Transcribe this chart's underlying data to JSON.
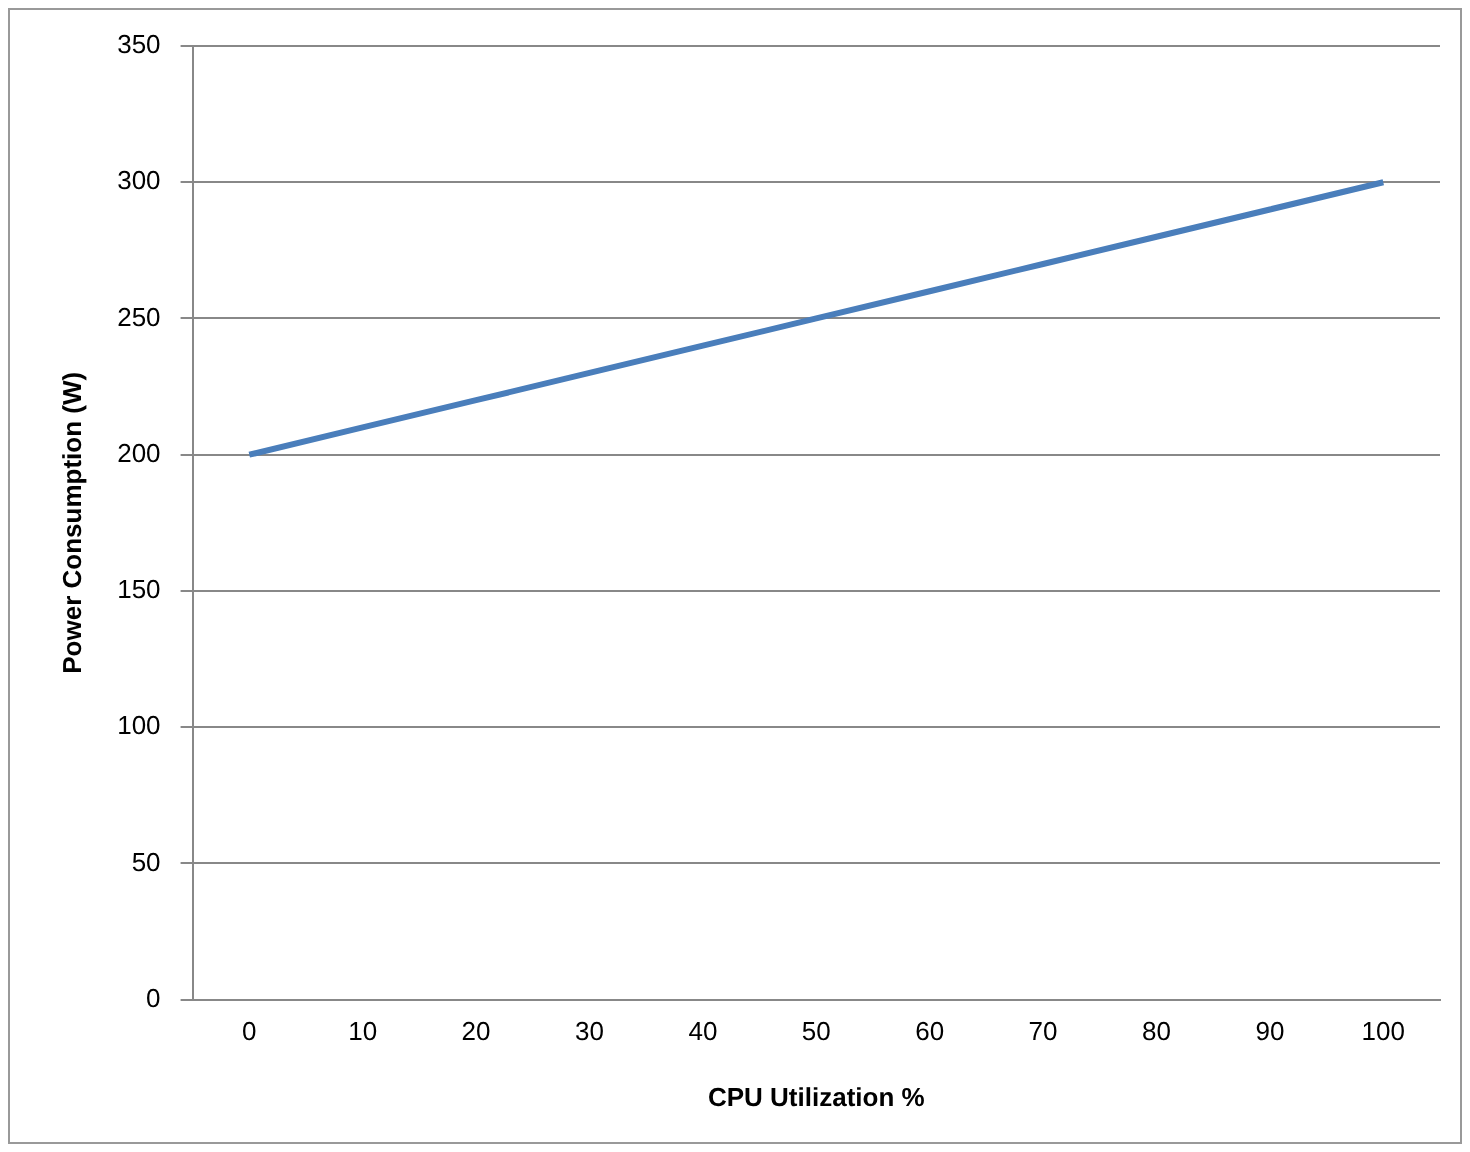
{
  "chart_data": {
    "type": "line",
    "xlabel": "CPU Utilization %",
    "ylabel": "Power Consumption (W)",
    "categories": [
      "0",
      "10",
      "20",
      "30",
      "40",
      "50",
      "60",
      "70",
      "80",
      "90",
      "100"
    ],
    "series": [
      {
        "color": "#4a7ebb",
        "values": [
          200,
          210,
          220,
          230,
          240,
          250,
          260,
          270,
          280,
          290,
          300
        ]
      }
    ],
    "ylim": [
      0,
      350
    ],
    "yticks": [
      0,
      50,
      100,
      150,
      200,
      250,
      300,
      350
    ],
    "grid": "y",
    "legend": false,
    "marker": "none"
  }
}
